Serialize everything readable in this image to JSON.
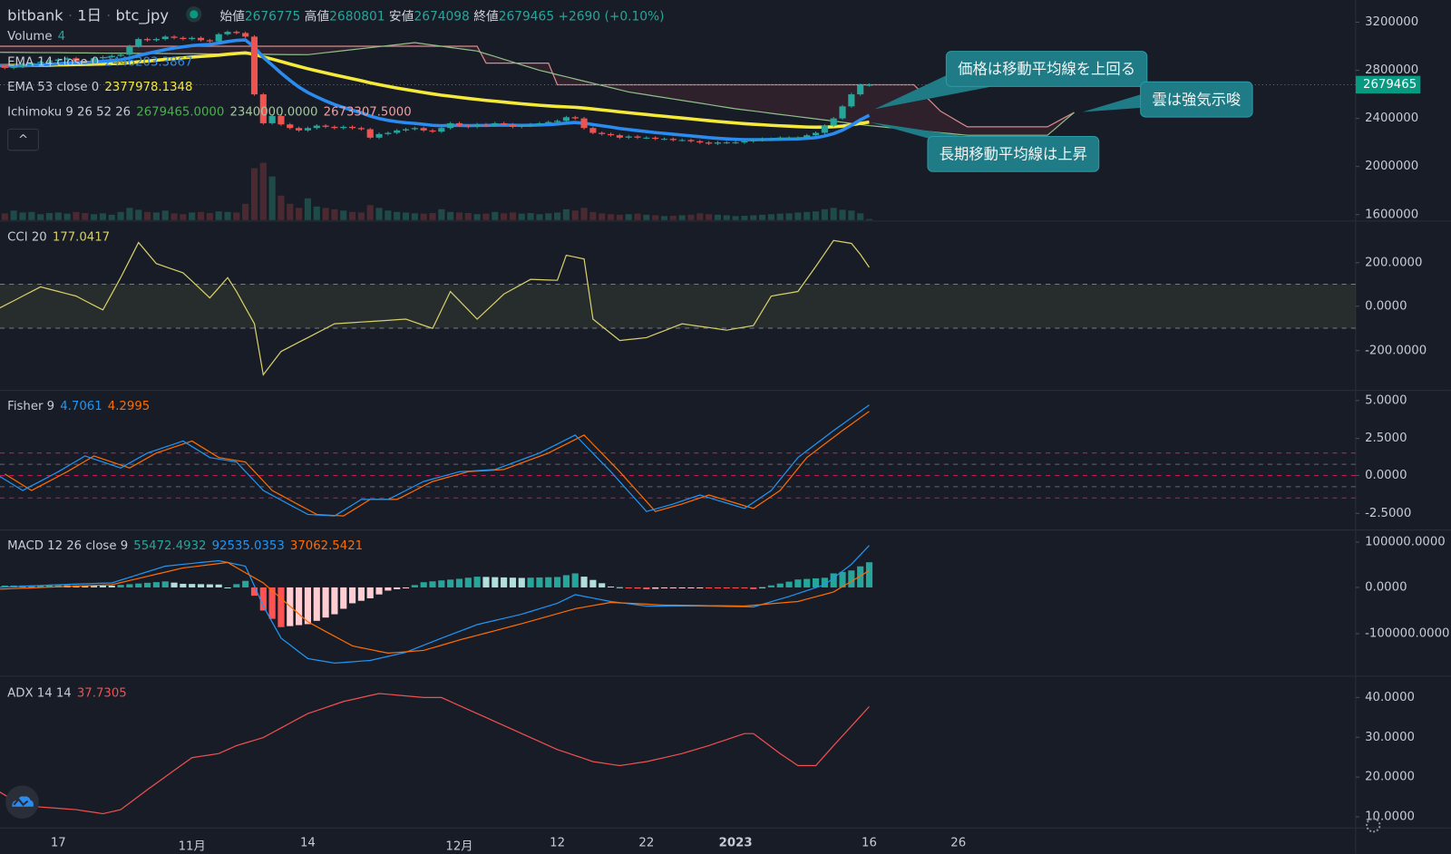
{
  "header": {
    "exchange": "bitbank",
    "interval": "1日",
    "symbol": "btc_jpy",
    "open_label": "始値",
    "open": "2676775",
    "high_label": "高値",
    "high": "2680801",
    "low_label": "安値",
    "low": "2674098",
    "close_label": "終値",
    "close": "2679465",
    "change": "+2690 (+0.10%)"
  },
  "legends": {
    "volume": {
      "label": "Volume",
      "value": "4"
    },
    "ema14": {
      "label": "EMA 14 close 0",
      "value": "2446203.3867"
    },
    "ema53": {
      "label": "EMA 53 close 0",
      "value": "2377978.1348"
    },
    "ichimoku": {
      "label": "Ichimoku 9 26 52 26",
      "v1": "2679465.0000",
      "v2": "2340000.0000",
      "v3": "2673307.5000"
    },
    "cci": {
      "label": "CCI 20",
      "value": "177.0417"
    },
    "fisher": {
      "label": "Fisher 9",
      "v1": "4.7061",
      "v2": "4.2995"
    },
    "macd": {
      "label": "MACD 12 26 close 9",
      "hist": "55472.4932",
      "macd": "92535.0353",
      "signal": "37062.5421"
    },
    "adx": {
      "label": "ADX 14 14",
      "value": "37.7305"
    }
  },
  "collapse_button": "^",
  "callouts": {
    "price_above_ma": "価格は移動平均線を上回る",
    "cloud_bullish": "雲は強気示唆",
    "long_ma_rising": "長期移動平均線は上昇"
  },
  "axes": {
    "price": [
      "3200000",
      "2800000",
      "2400000",
      "2000000",
      "1600000"
    ],
    "current_price": "2679465",
    "cci": [
      "200.0000",
      "0.0000",
      "-200.0000"
    ],
    "fisher": [
      "5.0000",
      "2.5000",
      "0.0000",
      "-2.5000"
    ],
    "macd": [
      "100000.0000",
      "0.0000",
      "-100000.0000"
    ],
    "adx": [
      "40.0000",
      "30.0000",
      "20.0000",
      "10.0000"
    ],
    "time": [
      {
        "label": "17",
        "date": "2022-10-17"
      },
      {
        "label": "11月",
        "date": "2022-11-01"
      },
      {
        "label": "14",
        "date": "2022-11-14"
      },
      {
        "label": "12月",
        "date": "2022-12-01"
      },
      {
        "label": "12",
        "date": "2022-12-12"
      },
      {
        "label": "22",
        "date": "2022-12-22"
      },
      {
        "label": "2023",
        "date": "2023-01-01"
      },
      {
        "label": "16",
        "date": "2023-01-16"
      },
      {
        "label": "26",
        "date": "2023-01-26"
      }
    ]
  },
  "colors": {
    "up": "#26a69a",
    "down": "#ef5350",
    "ema14": "#2a8cf0",
    "ema53": "#f5e93a",
    "cci": "#d8d06a",
    "fisher": "#2196f3",
    "fisher_signal": "#ff6d00",
    "macd": "#2196f3",
    "macd_signal": "#ff6d00",
    "adx": "#f05050",
    "accent": "#089981",
    "callout": "#1f7c86"
  },
  "chart_data": [
    {
      "type": "candlestick",
      "title": "bitbank 1日 btc_jpy",
      "start_date": "2022-10-10",
      "interval": "1 day",
      "close": [
        2840000,
        2820000,
        2830000,
        2850000,
        2860000,
        2870000,
        2880000,
        2890000,
        2900000,
        2880000,
        2870000,
        2900000,
        2910000,
        2920000,
        2930000,
        3000000,
        3060000,
        3050000,
        3060000,
        3080000,
        3070000,
        3060000,
        3070000,
        3050000,
        3040000,
        3100000,
        3120000,
        3110000,
        3080000,
        2600000,
        2360000,
        2420000,
        2350000,
        2320000,
        2300000,
        2320000,
        2340000,
        2330000,
        2320000,
        2330000,
        2320000,
        2310000,
        2240000,
        2270000,
        2280000,
        2300000,
        2310000,
        2320000,
        2300000,
        2290000,
        2320000,
        2360000,
        2340000,
        2330000,
        2350000,
        2340000,
        2360000,
        2350000,
        2330000,
        2340000,
        2350000,
        2360000,
        2370000,
        2380000,
        2410000,
        2400000,
        2320000,
        2280000,
        2270000,
        2260000,
        2240000,
        2250000,
        2240000,
        2240000,
        2230000,
        2230000,
        2220000,
        2220000,
        2210000,
        2200000,
        2190000,
        2200000,
        2200000,
        2200000,
        2210000,
        2220000,
        2230000,
        2230000,
        2240000,
        2240000,
        2240000,
        2260000,
        2280000,
        2340000,
        2400000,
        2500000,
        2600000,
        2676775,
        2679465
      ],
      "volume": [
        30,
        25,
        35,
        28,
        30,
        22,
        26,
        28,
        24,
        30,
        26,
        22,
        25,
        20,
        30,
        45,
        38,
        30,
        28,
        35,
        25,
        22,
        28,
        30,
        26,
        32,
        30,
        28,
        60,
        190,
        210,
        160,
        90,
        60,
        45,
        80,
        50,
        45,
        40,
        35,
        30,
        28,
        55,
        45,
        35,
        30,
        28,
        25,
        24,
        26,
        40,
        30,
        28,
        26,
        22,
        24,
        30,
        25,
        28,
        24,
        26,
        22,
        25,
        28,
        40,
        35,
        45,
        30,
        25,
        22,
        20,
        22,
        24,
        20,
        18,
        15,
        16,
        18,
        20,
        25,
        22,
        20,
        18,
        15,
        16,
        18,
        20,
        22,
        24,
        25,
        28,
        30,
        32,
        40,
        45,
        38,
        35,
        25,
        4
      ],
      "ylim": [
        1600000,
        3200000
      ],
      "ichimoku_cloud": {
        "span_b": [
          [
            "2022-10-10",
            3000000
          ],
          [
            "2022-12-03",
            3000000
          ],
          [
            "2022-12-04",
            2860000
          ],
          [
            "2022-12-11",
            2860000
          ],
          [
            "2022-12-12",
            2680000
          ],
          [
            "2023-01-21",
            2680000
          ],
          [
            "2023-01-24",
            2460000
          ],
          [
            "2023-01-27",
            2330000
          ],
          [
            "2023-02-05",
            2330000
          ],
          [
            "2023-02-08",
            2450000
          ]
        ],
        "span_a": [
          [
            "2022-10-10",
            2950000
          ],
          [
            "2022-11-14",
            2930000
          ],
          [
            "2022-11-26",
            3030000
          ],
          [
            "2022-12-03",
            2960000
          ],
          [
            "2022-12-10",
            2800000
          ],
          [
            "2022-12-20",
            2620000
          ],
          [
            "2023-01-01",
            2480000
          ],
          [
            "2023-01-16",
            2340000
          ],
          [
            "2023-01-27",
            2260000
          ],
          [
            "2023-02-05",
            2260000
          ],
          [
            "2023-02-08",
            2450000
          ]
        ]
      }
    },
    {
      "type": "line",
      "name": "CCI 20",
      "ylim": [
        -300,
        300
      ],
      "bands": [
        -100,
        100
      ],
      "points": [
        [
          "2022-10-10",
          -17
        ],
        [
          "2022-10-15",
          88
        ],
        [
          "2022-10-19",
          46
        ],
        [
          "2022-10-22",
          -17
        ],
        [
          "2022-10-24",
          130
        ],
        [
          "2022-10-26",
          290
        ],
        [
          "2022-10-28",
          194
        ],
        [
          "2022-10-31",
          152
        ],
        [
          "2022-11-03",
          38
        ],
        [
          "2022-11-05",
          130
        ],
        [
          "2022-11-06",
          67
        ],
        [
          "2022-11-08",
          -80
        ],
        [
          "2022-11-09",
          -312
        ],
        [
          "2022-11-11",
          -206
        ],
        [
          "2022-11-17",
          -80
        ],
        [
          "2022-11-25",
          -59
        ],
        [
          "2022-11-28",
          -101
        ],
        [
          "2022-11-30",
          67
        ],
        [
          "2022-12-03",
          -59
        ],
        [
          "2022-12-06",
          55
        ],
        [
          "2022-12-09",
          122
        ],
        [
          "2022-12-12",
          118
        ],
        [
          "2022-12-13",
          232
        ],
        [
          "2022-12-15",
          215
        ],
        [
          "2022-12-16",
          -59
        ],
        [
          "2022-12-19",
          -156
        ],
        [
          "2022-12-22",
          -143
        ],
        [
          "2022-12-26",
          -80
        ],
        [
          "2022-12-31",
          -109
        ],
        [
          "2023-01-03",
          -88
        ],
        [
          "2023-01-05",
          46
        ],
        [
          "2023-01-08",
          67
        ],
        [
          "2023-01-10",
          181
        ],
        [
          "2023-01-12",
          299
        ],
        [
          "2023-01-14",
          286
        ],
        [
          "2023-01-15",
          236
        ],
        [
          "2023-01-16",
          177.0417
        ]
      ]
    },
    {
      "type": "line",
      "name": "Fisher 9",
      "levels": [
        1.5,
        0.75,
        0,
        -0.75,
        -1.5
      ],
      "points": [
        [
          "2022-10-10",
          0.1
        ],
        [
          "2022-10-13",
          -1
        ],
        [
          "2022-10-17",
          0.25
        ],
        [
          "2022-10-20",
          1.3
        ],
        [
          "2022-10-22",
          0.9
        ],
        [
          "2022-10-24",
          0.5
        ],
        [
          "2022-10-27",
          1.5
        ],
        [
          "2022-10-31",
          2.3
        ],
        [
          "2022-11-03",
          1.2
        ],
        [
          "2022-11-06",
          0.9
        ],
        [
          "2022-11-09",
          -1
        ],
        [
          "2022-11-14",
          -2.6
        ],
        [
          "2022-11-17",
          -2.7
        ],
        [
          "2022-11-20",
          -1.6
        ],
        [
          "2022-11-23",
          -1.6
        ],
        [
          "2022-11-27",
          -0.4
        ],
        [
          "2022-12-01",
          0.25
        ],
        [
          "2022-12-05",
          0.4
        ],
        [
          "2022-12-10",
          1.5
        ],
        [
          "2022-12-14",
          2.7
        ],
        [
          "2022-12-18",
          0.25
        ],
        [
          "2022-12-22",
          -2.4
        ],
        [
          "2022-12-25",
          -1.9
        ],
        [
          "2022-12-28",
          -1.3
        ],
        [
          "2023-01-02",
          -2.2
        ],
        [
          "2023-01-05",
          -1
        ],
        [
          "2023-01-08",
          1.2
        ],
        [
          "2023-01-12",
          3.0
        ],
        [
          "2023-01-16",
          4.7061
        ]
      ]
    },
    {
      "type": "line",
      "name": "MACD 12 26 close 9",
      "macd": [
        [
          "2022-10-10",
          0
        ],
        [
          "2022-10-17",
          6000
        ],
        [
          "2022-10-23",
          10000
        ],
        [
          "2022-10-29",
          47000
        ],
        [
          "2022-11-04",
          59000
        ],
        [
          "2022-11-07",
          47000
        ],
        [
          "2022-11-09",
          -41000
        ],
        [
          "2022-11-11",
          -112000
        ],
        [
          "2022-11-14",
          -157000
        ],
        [
          "2022-11-17",
          -167000
        ],
        [
          "2022-11-21",
          -161000
        ],
        [
          "2022-11-25",
          -143000
        ],
        [
          "2022-11-29",
          -112000
        ],
        [
          "2022-12-03",
          -82000
        ],
        [
          "2022-12-08",
          -59000
        ],
        [
          "2022-12-12",
          -35000
        ],
        [
          "2022-12-14",
          -16000
        ],
        [
          "2022-12-18",
          -31000
        ],
        [
          "2022-12-22",
          -41000
        ],
        [
          "2022-12-28",
          -41000
        ],
        [
          "2023-01-03",
          -43000
        ],
        [
          "2023-01-07",
          -20000
        ],
        [
          "2023-01-11",
          6000
        ],
        [
          "2023-01-14",
          51000
        ],
        [
          "2023-01-16",
          92535.0353
        ]
      ],
      "signal": [
        [
          "2022-10-10",
          -4000
        ],
        [
          "2022-10-23",
          6000
        ],
        [
          "2022-10-31",
          43000
        ],
        [
          "2022-11-05",
          55000
        ],
        [
          "2022-11-09",
          10000
        ],
        [
          "2022-11-14",
          -76000
        ],
        [
          "2022-11-19",
          -129000
        ],
        [
          "2022-11-23",
          -145000
        ],
        [
          "2022-11-27",
          -139000
        ],
        [
          "2022-12-01",
          -116000
        ],
        [
          "2022-12-08",
          -80000
        ],
        [
          "2022-12-14",
          -47000
        ],
        [
          "2022-12-18",
          -33000
        ],
        [
          "2022-12-24",
          -39000
        ],
        [
          "2023-01-02",
          -41000
        ],
        [
          "2023-01-08",
          -31000
        ],
        [
          "2023-01-12",
          -10000
        ],
        [
          "2023-01-16",
          37062.5421
        ]
      ]
    },
    {
      "type": "line",
      "name": "ADX 14 14",
      "points": [
        [
          "2022-10-10",
          17
        ],
        [
          "2022-10-13",
          13
        ],
        [
          "2022-10-19",
          12
        ],
        [
          "2022-10-22",
          11
        ],
        [
          "2022-10-24",
          12
        ],
        [
          "2022-10-27",
          17
        ],
        [
          "2022-11-01",
          25
        ],
        [
          "2022-11-04",
          26
        ],
        [
          "2022-11-06",
          28
        ],
        [
          "2022-11-09",
          30
        ],
        [
          "2022-11-14",
          36
        ],
        [
          "2022-11-18",
          39
        ],
        [
          "2022-11-22",
          41
        ],
        [
          "2022-11-27",
          40
        ],
        [
          "2022-11-29",
          40
        ],
        [
          "2022-12-02",
          37
        ],
        [
          "2022-12-06",
          33
        ],
        [
          "2022-12-12",
          27
        ],
        [
          "2022-12-16",
          24
        ],
        [
          "2022-12-19",
          23
        ],
        [
          "2022-12-22",
          24
        ],
        [
          "2022-12-26",
          26
        ],
        [
          "2022-12-29",
          28
        ],
        [
          "2023-01-02",
          31
        ],
        [
          "2023-01-03",
          31
        ],
        [
          "2023-01-06",
          26
        ],
        [
          "2023-01-08",
          23
        ],
        [
          "2023-01-10",
          23
        ],
        [
          "2023-01-12",
          28
        ],
        [
          "2023-01-16",
          37.7305
        ]
      ]
    }
  ]
}
